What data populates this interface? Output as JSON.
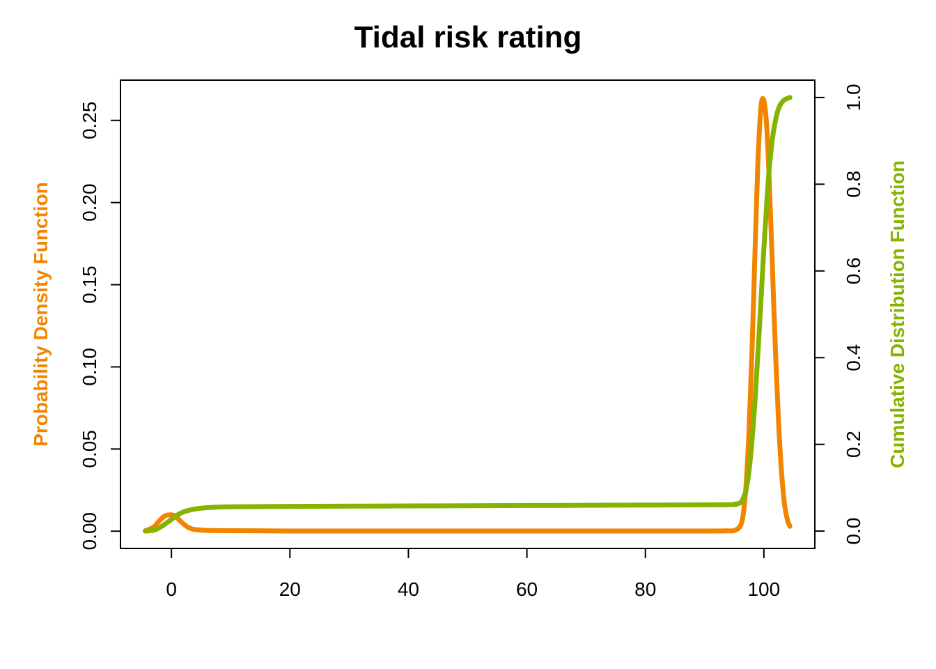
{
  "chart_data": {
    "type": "line",
    "title": "Tidal risk rating",
    "xlabel": "",
    "ylabel_left": "Probability Density Function",
    "ylabel_right": "Cumulative Distribution Function",
    "xlim": [
      -8.6,
      108.6
    ],
    "ylim_left": [
      -0.0105,
      0.2745
    ],
    "ylim_right": [
      -0.04,
      1.04
    ],
    "x_ticks": [
      0,
      20,
      40,
      60,
      80,
      100
    ],
    "x_tick_labels": [
      "0",
      "20",
      "40",
      "60",
      "80",
      "100"
    ],
    "y_left_ticks": [
      0.0,
      0.05,
      0.1,
      0.15,
      0.2,
      0.25
    ],
    "y_left_tick_labels": [
      "0.00",
      "0.05",
      "0.10",
      "0.15",
      "0.20",
      "0.25"
    ],
    "y_right_ticks": [
      0.0,
      0.2,
      0.4,
      0.6,
      0.8,
      1.0
    ],
    "y_right_tick_labels": [
      "0.0",
      "0.2",
      "0.4",
      "0.6",
      "0.8",
      "1.0"
    ],
    "grid": false,
    "legend": "none",
    "colors": {
      "pdf": "#f28500",
      "cdf": "#86b300"
    },
    "series": [
      {
        "axis": "left",
        "x": [
          -4.4,
          -3,
          -2,
          -1,
          0,
          0.5,
          1,
          2,
          3,
          4,
          6,
          10,
          20,
          40,
          60,
          80,
          90,
          94,
          95,
          96,
          96.5,
          97,
          97.5,
          98,
          98.5,
          99,
          99.5,
          100,
          100.5,
          101,
          101.5,
          102,
          102.5,
          103,
          103.5,
          104,
          104.4
        ],
        "values": [
          0.0003,
          0.0025,
          0.0065,
          0.0095,
          0.01,
          0.0095,
          0.008,
          0.0045,
          0.002,
          0.001,
          0.0005,
          0.0003,
          0.0001,
          0.0001,
          0.0001,
          0.0001,
          0.0001,
          0.0002,
          0.0004,
          0.003,
          0.01,
          0.028,
          0.062,
          0.11,
          0.17,
          0.225,
          0.258,
          0.262,
          0.245,
          0.205,
          0.155,
          0.105,
          0.065,
          0.035,
          0.016,
          0.0065,
          0.003
        ]
      },
      {
        "axis": "right",
        "x": [
          -4.4,
          -3,
          -2,
          -1,
          0,
          1,
          2,
          3,
          4,
          6,
          10,
          20,
          40,
          60,
          80,
          94,
          95,
          96,
          96.5,
          97,
          97.5,
          98,
          98.5,
          99,
          99.5,
          100,
          100.5,
          101,
          101.5,
          102,
          102.5,
          103,
          103.5,
          104,
          104.4
        ],
        "values": [
          0.0,
          0.002,
          0.008,
          0.017,
          0.027,
          0.037,
          0.044,
          0.048,
          0.051,
          0.054,
          0.056,
          0.057,
          0.058,
          0.059,
          0.06,
          0.061,
          0.062,
          0.065,
          0.075,
          0.095,
          0.14,
          0.21,
          0.3,
          0.41,
          0.53,
          0.65,
          0.76,
          0.85,
          0.91,
          0.95,
          0.975,
          0.988,
          0.995,
          0.998,
          1.0
        ]
      }
    ]
  }
}
